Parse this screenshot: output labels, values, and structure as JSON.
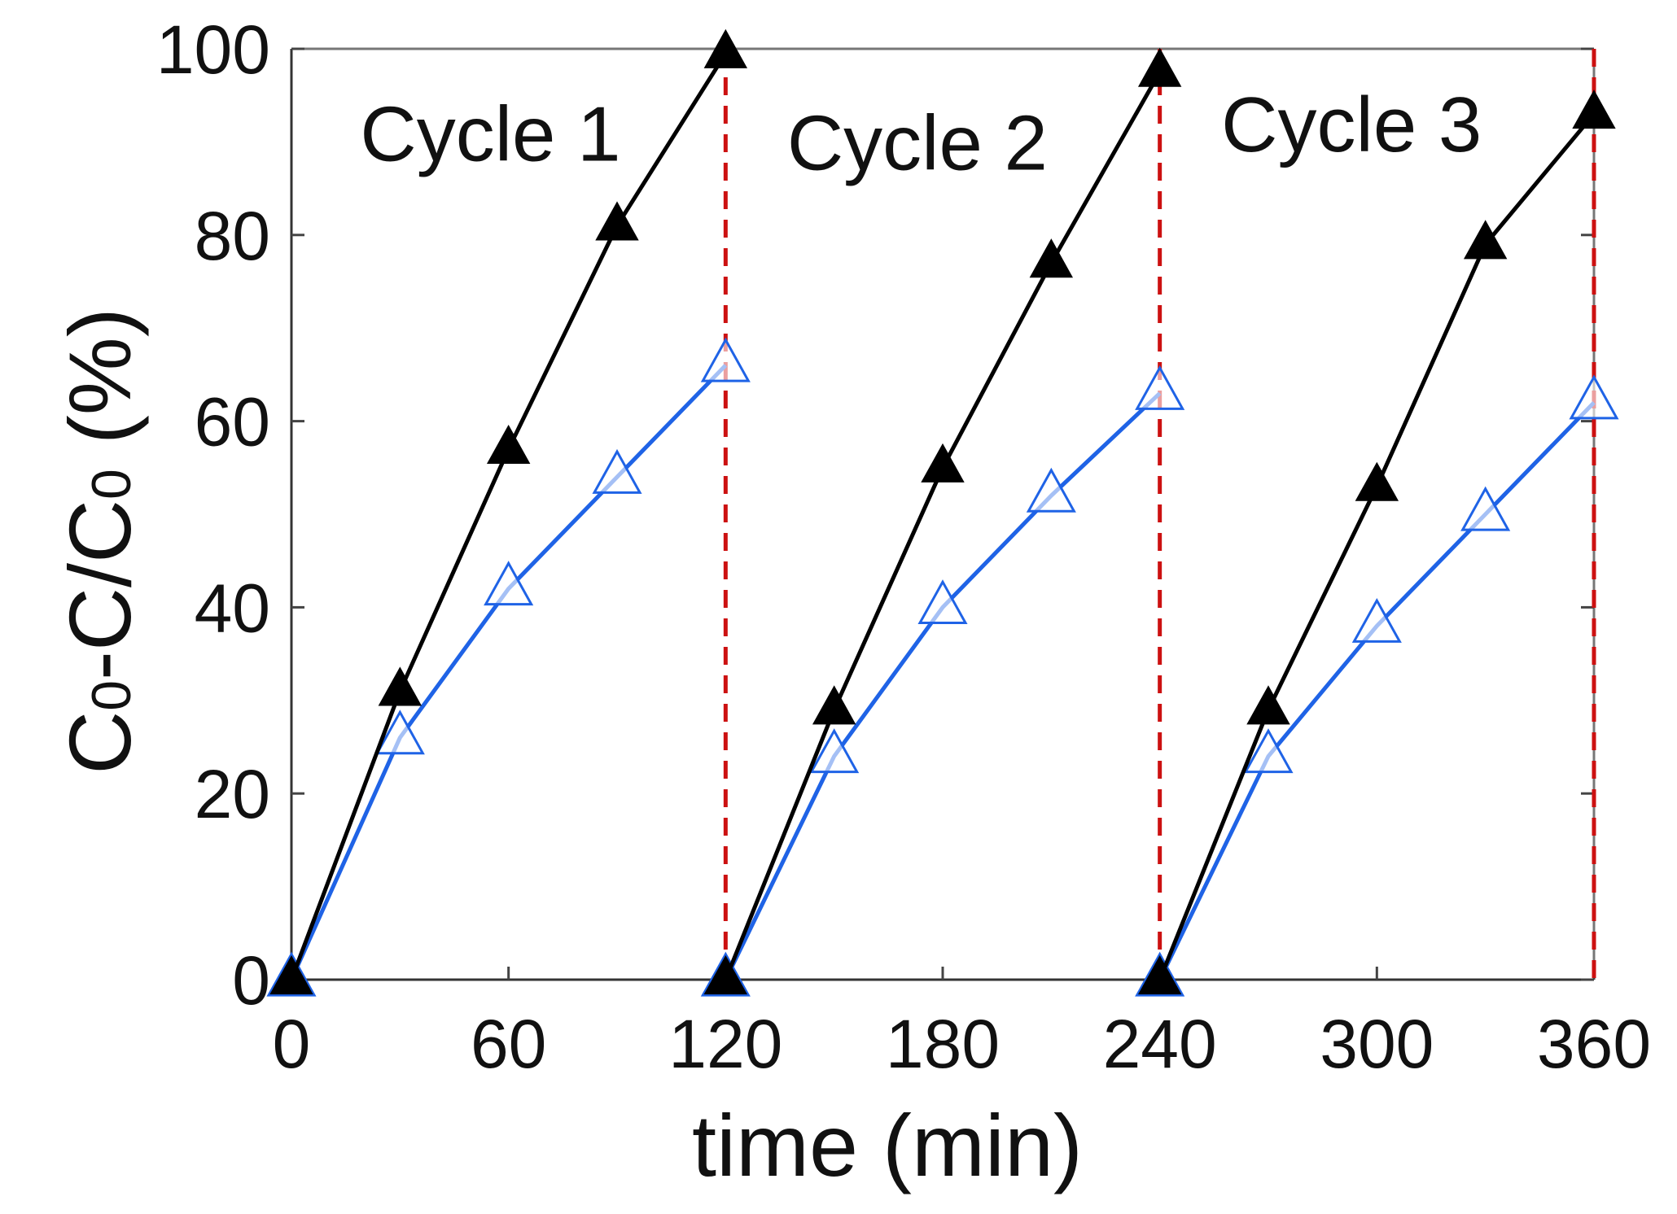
{
  "chart_data": {
    "type": "line",
    "title": "",
    "xlabel": "time (min)",
    "ylabel": {
      "p1": "C",
      "s1": "0",
      "p2": "-C/C",
      "s2": "0",
      "p3": " (%)"
    },
    "xlim": [
      0,
      360
    ],
    "ylim": [
      0,
      100
    ],
    "xticks": [
      0,
      60,
      120,
      180,
      240,
      300,
      360
    ],
    "yticks": [
      0,
      20,
      40,
      60,
      80,
      100
    ],
    "cycle_boundaries": [
      120,
      240,
      360
    ],
    "annotations": [
      {
        "text": "Cycle 1",
        "x": 55,
        "y": 88
      },
      {
        "text": "Cycle 2",
        "x": 173,
        "y": 87
      },
      {
        "text": "Cycle 3",
        "x": 293,
        "y": 89
      }
    ],
    "series": [
      {
        "name": "black-filled-triangle",
        "color": "#000000",
        "marker": "filled-triangle",
        "x": [
          0,
          30,
          60,
          90,
          120,
          120,
          150,
          180,
          210,
          240,
          240,
          270,
          300,
          330,
          360
        ],
        "y": [
          0,
          31,
          57,
          81,
          99.5,
          0,
          29,
          55,
          77,
          97.5,
          0,
          29,
          53,
          79,
          93
        ]
      },
      {
        "name": "blue-open-triangle",
        "color": "#1f63e6",
        "marker": "open-triangle",
        "x": [
          0,
          30,
          60,
          90,
          120,
          120,
          150,
          180,
          210,
          240,
          240,
          270,
          300,
          330,
          360
        ],
        "y": [
          0,
          26,
          42,
          54,
          66,
          0,
          24,
          40,
          52,
          63,
          0,
          24,
          38,
          50,
          62
        ]
      }
    ],
    "boundary_color": "#cc1111"
  }
}
